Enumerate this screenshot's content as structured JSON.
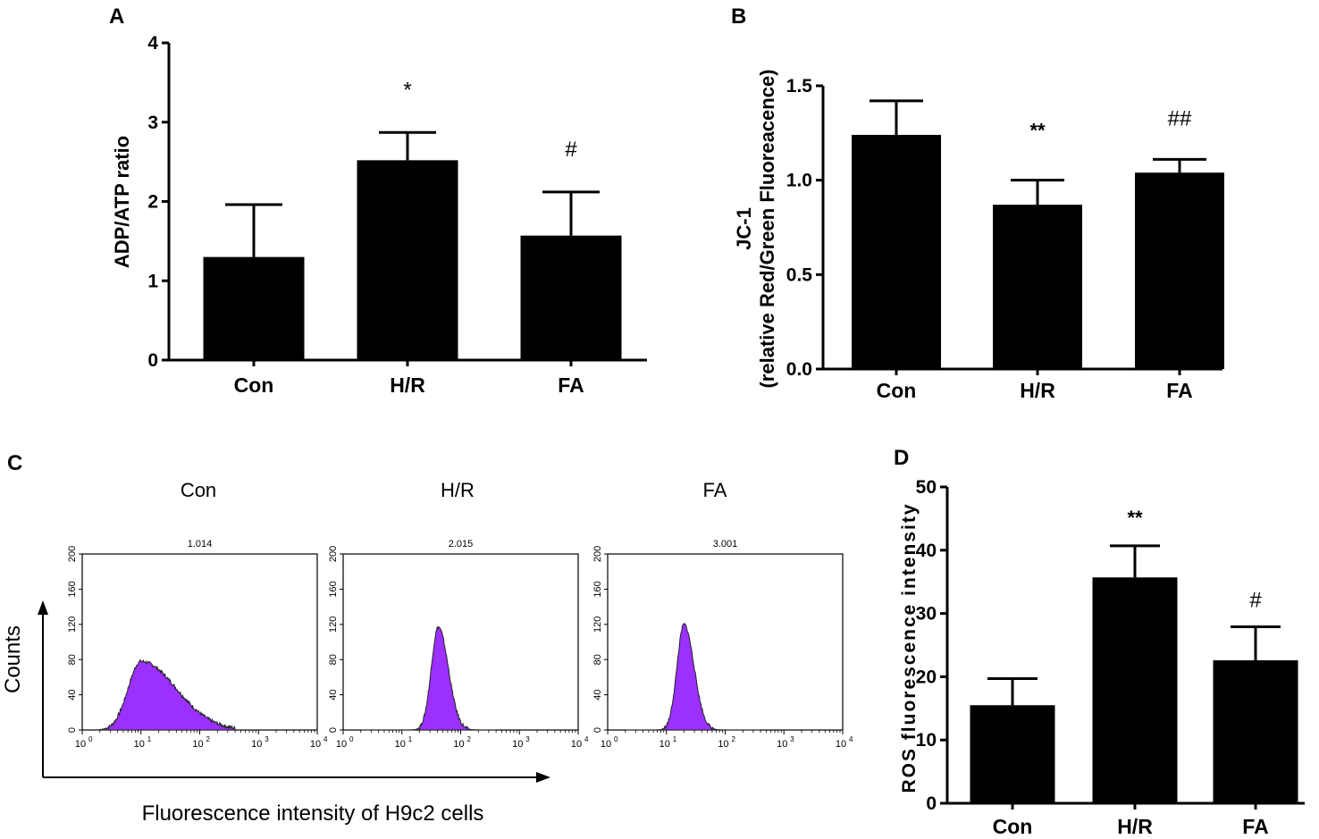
{
  "panels": [
    {
      "label": "A",
      "chart_data": {
        "type": "bar",
        "title": "",
        "xlabel": "",
        "ylabel": "ADP/ATP ratio",
        "ylim": [
          0,
          4
        ],
        "yticks": [
          0,
          1,
          2,
          3,
          4
        ],
        "ytick_labels": [
          "0",
          "1",
          "2",
          "3",
          "4"
        ],
        "categories": [
          "Con",
          "H/R",
          "FA"
        ],
        "values": [
          1.3,
          2.52,
          1.57
        ],
        "errors": [
          0.66,
          0.35,
          0.55
        ],
        "annotations": [
          "",
          "*",
          "#"
        ]
      }
    },
    {
      "label": "B",
      "chart_data": {
        "type": "bar",
        "title": "",
        "xlabel": "",
        "ylabel": "JC-1",
        "ylabel2": "(relative Red/Green Fluoreacence)",
        "ylim": [
          0,
          1.5
        ],
        "yticks": [
          0,
          0.5,
          1.0,
          1.5
        ],
        "ytick_labels": [
          "0.0",
          "0.5",
          "1.0",
          "1.5"
        ],
        "categories": [
          "Con",
          "H/R",
          "FA"
        ],
        "values": [
          1.24,
          0.87,
          1.04
        ],
        "errors": [
          0.18,
          0.13,
          0.07
        ],
        "annotations": [
          "",
          "**",
          "##"
        ]
      }
    },
    {
      "label": "C",
      "chart_data": {
        "type": "histogram",
        "ylabel": "Counts",
        "xlabel": "Fluorescence intensity of H9c2 cells",
        "ylim": [
          0,
          200
        ],
        "yticks": [
          "0",
          "40",
          "80",
          "120",
          "160",
          "200"
        ],
        "xscale": "log",
        "xticks": [
          {
            "base": "10",
            "exp": "0"
          },
          {
            "base": "10",
            "exp": "1"
          },
          {
            "base": "10",
            "exp": "2"
          },
          {
            "base": "10",
            "exp": "3"
          },
          {
            "base": "10",
            "exp": "4"
          }
        ],
        "fill_color": "#9b30ff",
        "histograms": [
          {
            "name": "Con",
            "value_label": "1.014",
            "peak_log": 1.0,
            "peak_count": 78,
            "width_left": 0.22,
            "width_right": 0.6
          },
          {
            "name": "H/R",
            "value_label": "2.015",
            "peak_log": 1.62,
            "peak_count": 117,
            "width_left": 0.12,
            "width_right": 0.17
          },
          {
            "name": "FA",
            "value_label": "3.001",
            "peak_log": 1.3,
            "peak_count": 120,
            "width_left": 0.12,
            "width_right": 0.17
          }
        ]
      }
    },
    {
      "label": "D",
      "chart_data": {
        "type": "bar",
        "title": "",
        "xlabel": "",
        "ylabel": "ROS fluorescence intensity",
        "ylim": [
          0,
          50
        ],
        "yticks": [
          0,
          10,
          20,
          30,
          40,
          50
        ],
        "ytick_labels": [
          "0",
          "10",
          "20",
          "30",
          "40",
          "50"
        ],
        "categories": [
          "Con",
          "H/R",
          "FA"
        ],
        "values": [
          15.5,
          35.7,
          22.6
        ],
        "errors": [
          4.2,
          5.0,
          5.3
        ],
        "annotations": [
          "",
          "**",
          "#"
        ]
      }
    }
  ]
}
